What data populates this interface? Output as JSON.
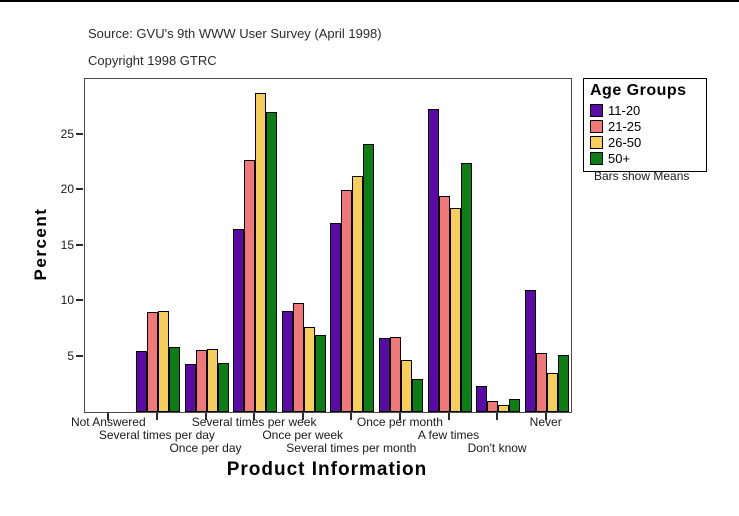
{
  "header": {
    "source_line": "Source: GVU's 9th WWW User Survey (April 1998)",
    "copyright_line": "Copyright 1998 GTRC"
  },
  "legend": {
    "title": "Age Groups",
    "note": "Bars show Means"
  },
  "colors": {
    "age_11_20": "#5A0BA5",
    "age_21_25": "#F07878",
    "age_26_50": "#F8CE5A",
    "age_50_plus": "#0C7E14",
    "axis": "#4a4a4a"
  },
  "chart_data": {
    "type": "bar",
    "title": "",
    "xlabel": "Product Information",
    "ylabel": "Percent",
    "ylim": [
      0,
      30
    ],
    "yticks": [
      5,
      10,
      15,
      20,
      25
    ],
    "grid": false,
    "legend_position": "right",
    "categories": [
      "Not Answered",
      "Several times per day",
      "Once per day",
      "Several times per week",
      "Once per week",
      "Several times per month",
      "Once per month",
      "A few times",
      "Don't know",
      "Never"
    ],
    "x_label_rows": [
      0,
      1,
      2,
      0,
      1,
      2,
      0,
      1,
      2,
      0
    ],
    "series": [
      {
        "name": "11-20",
        "color": "#5A0BA5",
        "values": [
          0,
          5.5,
          4.3,
          16.5,
          9.1,
          17.0,
          6.7,
          27.3,
          2.3,
          11.0
        ]
      },
      {
        "name": "21-25",
        "color": "#F07878",
        "values": [
          0,
          9.0,
          5.6,
          22.7,
          9.8,
          20.0,
          6.8,
          19.5,
          1.0,
          5.3
        ]
      },
      {
        "name": "26-50",
        "color": "#F8CE5A",
        "values": [
          0,
          9.1,
          5.7,
          28.7,
          7.7,
          21.3,
          4.7,
          18.4,
          0.6,
          3.5
        ]
      },
      {
        "name": "50+",
        "color": "#0C7E14",
        "values": [
          0,
          5.9,
          4.4,
          27.0,
          6.9,
          24.1,
          3.0,
          22.4,
          1.2,
          5.1
        ]
      }
    ]
  }
}
